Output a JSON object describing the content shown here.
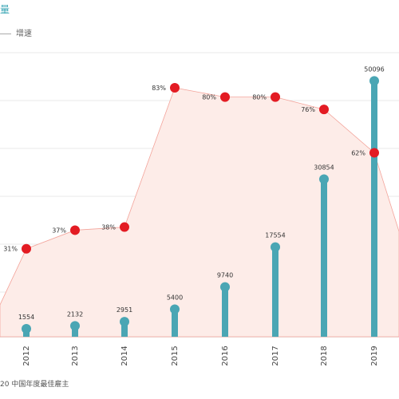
{
  "header": {
    "title": "量",
    "legend_growth": "增速"
  },
  "footer": {
    "source": "20 中国年度最佳雇主"
  },
  "colors": {
    "bar": "#4aa6b4",
    "dot": "#e31b23",
    "area": "#fdece8",
    "area_line": "#f3a49b",
    "grid": "#e8e8e8",
    "axis": "#999999"
  },
  "chart_data": {
    "type": "bar",
    "categories": [
      "2012",
      "2013",
      "2014",
      "2015",
      "2016",
      "2017",
      "2018",
      "2019"
    ],
    "series": [
      {
        "values": [
          1554,
          2132,
          2951,
          5400,
          9740,
          17554,
          30854,
          50096
        ]
      },
      {
        "values": [
          31,
          37,
          38,
          83,
          80,
          80,
          76,
          62
        ]
      }
    ],
    "value_labels": [
      "1554",
      "2132",
      "2951",
      "5400",
      "9740",
      "17554",
      "30854",
      "50096"
    ],
    "growth_labels": [
      "31%",
      "37%",
      "38%",
      "83%",
      "80%",
      "80%",
      "76%",
      "62%"
    ],
    "ylim": [
      0,
      55000
    ],
    "growth_ylim": [
      0,
      100
    ],
    "grid": true
  }
}
